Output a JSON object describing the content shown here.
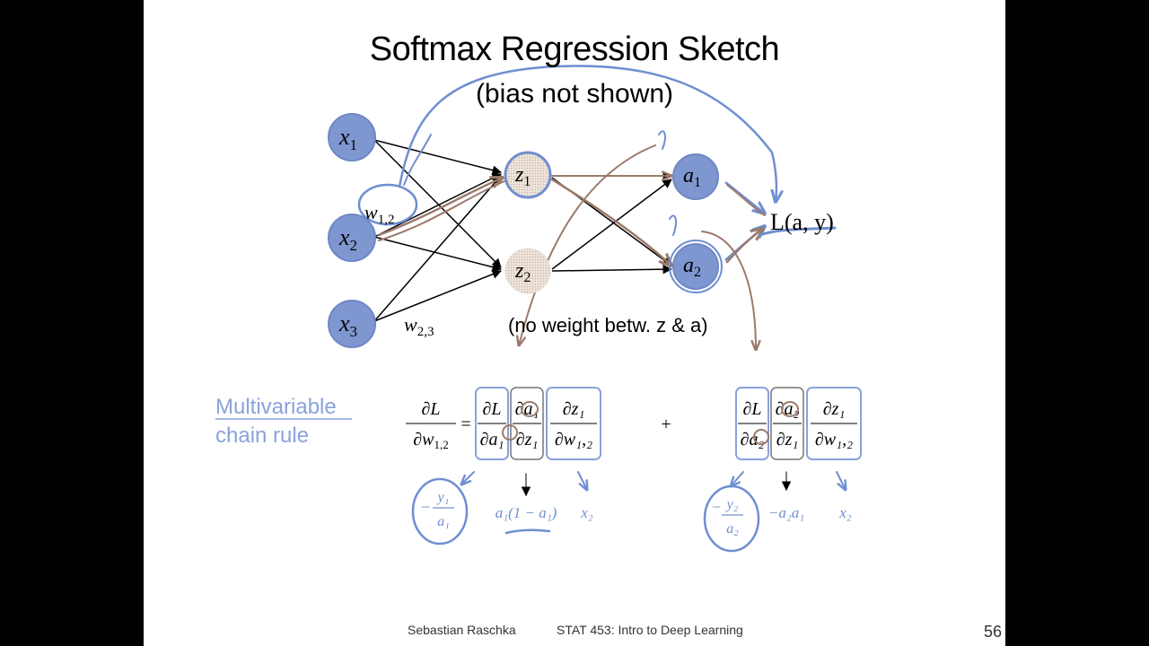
{
  "slide": {
    "title": "Softmax Regression Sketch",
    "subtitle": "(bias not shown)",
    "note": "(no weight betw. z & a)",
    "footer_author": "Sebastian Raschka",
    "footer_course": "STAT 453: Intro to Deep Learning",
    "page_number": "56"
  },
  "network": {
    "inputs": [
      "x",
      "x",
      "x"
    ],
    "input_subs": [
      "1",
      "2",
      "3"
    ],
    "hidden": [
      "z",
      "z"
    ],
    "hidden_subs": [
      "1",
      "2"
    ],
    "outputs": [
      "a",
      "a"
    ],
    "output_subs": [
      "1",
      "2"
    ],
    "loss_label": "L(a, y)",
    "weight_labels": [
      {
        "text": "w",
        "sub": "1,2"
      },
      {
        "text": "w",
        "sub": "2,3"
      }
    ]
  },
  "chain_rule": {
    "label_line1": "Multivariable",
    "label_line2": "chain rule",
    "lhs_num": "∂L",
    "lhs_den": "∂w",
    "lhs_den_sub": "1,2",
    "equals": "=",
    "plus": "+",
    "term1": {
      "f1_num": "∂L",
      "f1_den": "∂a₁",
      "f2_num": "∂a₁",
      "f2_den": "∂z₁",
      "f3_num": "∂z₁",
      "f3_den": "∂w₁,₂"
    },
    "term2": {
      "f1_num": "∂L",
      "f1_den": "∂a₂",
      "f2_num": "∂a₂",
      "f2_den": "∂z₁",
      "f3_num": "∂z₁",
      "f3_den": "∂w₁,₂"
    },
    "hand1": {
      "frac_num": "y₁",
      "frac_den": "a₁",
      "mid": "a₁(1 − a₁)",
      "right": "x₂"
    },
    "hand2": {
      "frac_num": "y₂",
      "frac_den": "a₂",
      "mid": "−a₂a₁",
      "right": "x₂"
    }
  },
  "colors": {
    "node_fill": "#7f97d0",
    "node_stroke": "#6f87c4",
    "hidden_fill": "#e7dcd2",
    "ink_blue": "#6f8fd1",
    "ink_brown": "#9b7a6a",
    "highlight_blue": "#a6b8e6"
  }
}
